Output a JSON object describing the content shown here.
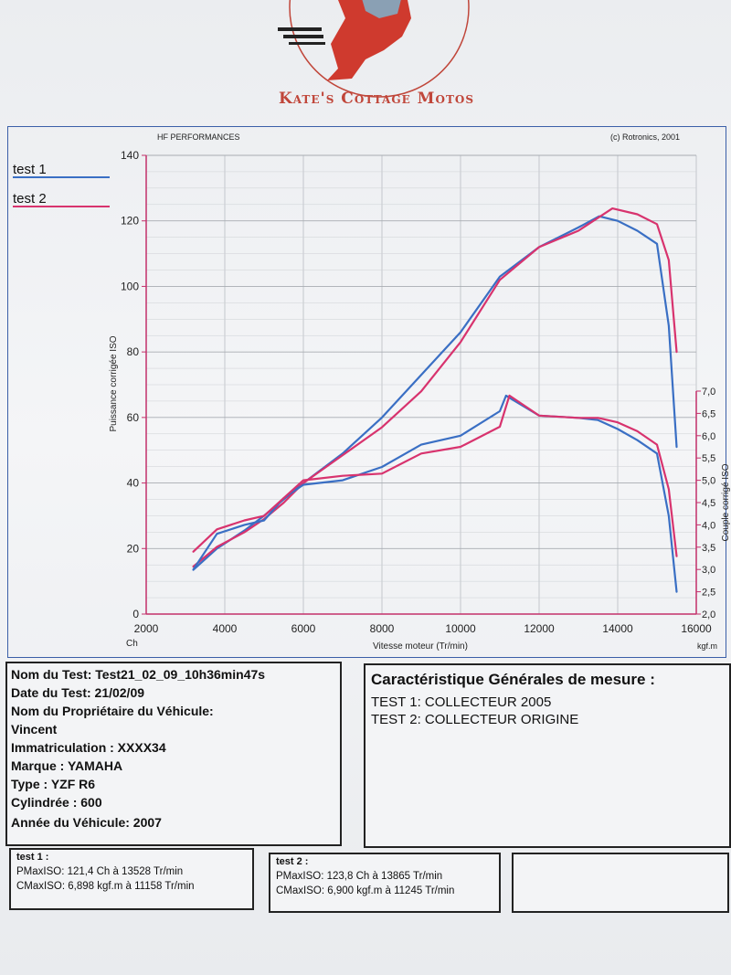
{
  "header": {
    "logo_text": "Kate's Cottage Motos"
  },
  "chart_header": {
    "left": "HF PERFORMANCES",
    "right": "(c) Rotronics, 2001"
  },
  "legend": [
    {
      "label": "test 1",
      "color": "#3a6fc4"
    },
    {
      "label": "test 2",
      "color": "#d8336e"
    }
  ],
  "chart_data": {
    "type": "line",
    "xlabel": "Vitesse moteur (Tr/min)",
    "x_unit": "Ch",
    "x_unit_right": "kgf.m",
    "ylabel_left": "Puissance corrigée ISO",
    "ylabel_right": "Couple corrigé ISO",
    "xlim": [
      2000,
      16000
    ],
    "ylim_left": [
      0,
      140
    ],
    "ylim_right": [
      2.0,
      7.0
    ],
    "x_ticks": [
      "2000",
      "4000",
      "6000",
      "8000",
      "10000",
      "12000",
      "14000",
      "16000"
    ],
    "y_ticks_left": [
      "0",
      "20",
      "40",
      "60",
      "80",
      "100",
      "120",
      "140"
    ],
    "y_ticks_right": [
      "2,0",
      "2,5",
      "3,0",
      "3,5",
      "4,0",
      "4,5",
      "5,0",
      "5,5",
      "6,0",
      "6,5",
      "7,0"
    ],
    "grid": true,
    "series": [
      {
        "name": "test 1",
        "quantity": "puissance",
        "color": "#3a6fc4",
        "x": [
          3200,
          3800,
          4500,
          5000,
          5500,
          6000,
          7000,
          8000,
          9000,
          10000,
          11000,
          12000,
          13000,
          13528,
          14000,
          14500,
          15000,
          15300,
          15500
        ],
        "y": [
          13.5,
          20,
          25.5,
          30,
          35,
          40,
          49,
          60,
          73,
          86,
          103,
          112,
          118,
          121.4,
          120,
          117,
          113,
          88,
          51
        ]
      },
      {
        "name": "test 2",
        "quantity": "puissance",
        "color": "#d8336e",
        "x": [
          3200,
          3800,
          4500,
          5000,
          5500,
          6000,
          7000,
          8000,
          9000,
          10000,
          11000,
          12000,
          13000,
          13865,
          14500,
          15000,
          15300,
          15500
        ],
        "y": [
          14.5,
          20.5,
          25,
          29,
          34,
          40,
          48.5,
          57,
          68,
          83,
          102,
          112,
          117,
          123.8,
          122,
          119,
          108,
          80
        ]
      },
      {
        "name": "test 1",
        "quantity": "couple",
        "color": "#3a6fc4",
        "x": [
          3200,
          3800,
          4500,
          5000,
          5500,
          6000,
          7000,
          8000,
          9000,
          10000,
          11000,
          11158,
          12000,
          13000,
          13500,
          14000,
          14500,
          15000,
          15300,
          15500
        ],
        "y": [
          3.0,
          3.8,
          4.0,
          4.1,
          4.6,
          4.9,
          5.0,
          5.3,
          5.8,
          6.0,
          6.55,
          6.898,
          6.45,
          6.4,
          6.35,
          6.15,
          5.9,
          5.6,
          4.2,
          2.5
        ]
      },
      {
        "name": "test 2",
        "quantity": "couple",
        "color": "#d8336e",
        "x": [
          3200,
          3800,
          4500,
          5000,
          5500,
          6000,
          7000,
          8000,
          9000,
          10000,
          11000,
          11245,
          12000,
          13000,
          13500,
          14000,
          14500,
          15000,
          15300,
          15500
        ],
        "y": [
          3.4,
          3.9,
          4.1,
          4.2,
          4.6,
          5.0,
          5.1,
          5.15,
          5.6,
          5.75,
          6.2,
          6.9,
          6.45,
          6.4,
          6.4,
          6.3,
          6.1,
          5.8,
          4.8,
          3.3
        ]
      }
    ]
  },
  "info": {
    "nom_test": "Nom du Test: Test21_02_09_10h36min47s",
    "date_test": "Date du Test: 21/02/09",
    "proprietaire_label": "Nom du Propriétaire du Véhicule:",
    "proprietaire": "Vincent",
    "immatriculation": "Immatriculation   : XXXX34",
    "marque": "Marque  : YAMAHA",
    "type": "Type  : YZF R6",
    "cylindree": "Cylindrée  : 600",
    "annee": "Année du Véhicule: 2007"
  },
  "mesure": {
    "title": "Caractéristique Générales de mesure :",
    "test1": "TEST 1: COLLECTEUR 2005",
    "test2": "TEST 2: COLLECTEUR ORIGINE"
  },
  "results": {
    "test1": {
      "title": "test 1 :",
      "pmax": "PMaxISO: 121,4 Ch à 13528 Tr/min",
      "cmax": "CMaxISO: 6,898 kgf.m à 11158 Tr/min"
    },
    "test2": {
      "title": "test 2 :",
      "pmax": "PMaxISO: 123,8 Ch à 13865 Tr/min",
      "cmax": "CMaxISO: 6,900 kgf.m à 11245 Tr/min"
    }
  }
}
